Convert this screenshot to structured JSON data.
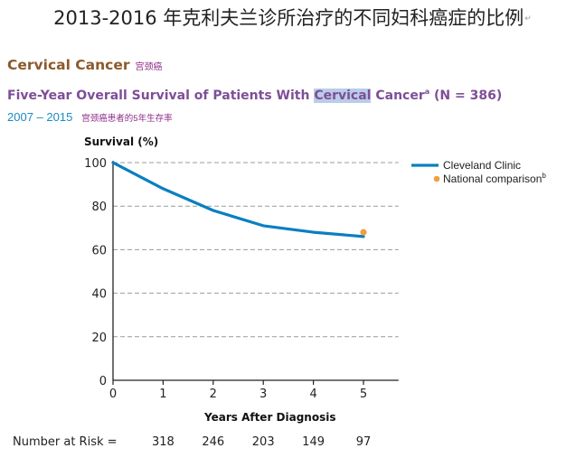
{
  "page": {
    "doc_title": "2013-2016 年克利夫兰诊所治疗的不同妇科癌症的比例",
    "return_mark": "↵"
  },
  "section": {
    "title": "Cervical Cancer",
    "title_cn": "宫颈癌"
  },
  "subtitle": {
    "prefix": "Five-Year Overall Survival of Patients With ",
    "highlight": "Cervical",
    "cancer": " Cancer",
    "sup": "a",
    "suffix": " (N = 386)"
  },
  "years": {
    "range": "2007 – 2015",
    "cn": "宫颈癌患者的5年生存率"
  },
  "chart_data": {
    "type": "line",
    "ylabel": "Survival (%)",
    "xlabel": "Years After Diagnosis",
    "x_ticks": [
      "0",
      "1",
      "2",
      "3",
      "4",
      "5"
    ],
    "y_ticks": [
      "0",
      "20",
      "40",
      "60",
      "80",
      "100"
    ],
    "xlim": [
      0,
      5.7
    ],
    "ylim": [
      0,
      100
    ],
    "grid": "horizontal dashed",
    "legend_position": "top-right",
    "series": [
      {
        "name": "Cleveland Clinic",
        "color": "#0a7fc2",
        "x": [
          0,
          1,
          2,
          3,
          4,
          5
        ],
        "y": [
          100,
          88,
          78,
          71,
          68,
          66
        ]
      }
    ],
    "points": [
      {
        "name": "National comparison",
        "name_sup": "b",
        "color": "#f0a040",
        "x": 5,
        "y": 68
      }
    ],
    "number_at_risk": {
      "label": "Number at Risk =",
      "values": [
        "318",
        "246",
        "203",
        "149",
        "97"
      ]
    }
  }
}
